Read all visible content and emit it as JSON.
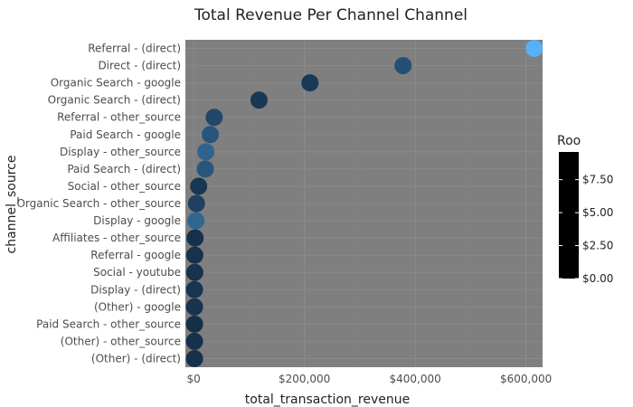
{
  "chart_data": {
    "type": "scatter",
    "title": "Total Revenue Per Channel Channel",
    "xlabel": "total_transaction_revenue",
    "ylabel": "channel_source",
    "xlim": [
      -15000,
      630000
    ],
    "x_ticks": [
      {
        "value": 0,
        "label": "$0"
      },
      {
        "value": 200000,
        "label": "$200,000"
      },
      {
        "value": 400000,
        "label": "$400,000"
      },
      {
        "value": 600000,
        "label": "$600,000"
      }
    ],
    "grid": true,
    "panel_color": "#7f7f7f",
    "categories": [
      "Referral - (direct)",
      "Direct - (direct)",
      "Organic Search - google",
      "Organic Search - (direct)",
      "Referral - other_source",
      "Paid Search - google",
      "Display - other_source",
      "Paid Search - (direct)",
      "Social - other_source",
      "Organic Search - other_source",
      "Display - google",
      "Affiliates - other_source",
      "Referral - google",
      "Social - youtube",
      "Display - (direct)",
      "(Other) - google",
      "Paid Search - other_source",
      "(Other) - other_source",
      "(Other) - (direct)"
    ],
    "x": [
      615000,
      378000,
      210000,
      118000,
      37000,
      30000,
      22000,
      21000,
      9000,
      5000,
      4000,
      2500,
      2000,
      2000,
      1500,
      1500,
      1500,
      1500,
      1500
    ],
    "color_values": [
      9.6,
      2.6,
      1.0,
      0.9,
      2.0,
      3.0,
      4.0,
      3.1,
      0.8,
      1.6,
      4.2,
      0.4,
      0.5,
      0.6,
      0.7,
      0.6,
      0.3,
      0.5,
      0.4
    ],
    "legend": {
      "title": "Roo",
      "placement": "right",
      "range": [
        0,
        9.6
      ],
      "ticks": [
        {
          "value": 0,
          "label": "$0.00"
        },
        {
          "value": 2.5,
          "label": "$2.50"
        },
        {
          "value": 5,
          "label": "$5.00"
        },
        {
          "value": 7.5,
          "label": "$7.50"
        }
      ],
      "color_low": "#132b43",
      "color_high": "#56b1f7"
    }
  }
}
